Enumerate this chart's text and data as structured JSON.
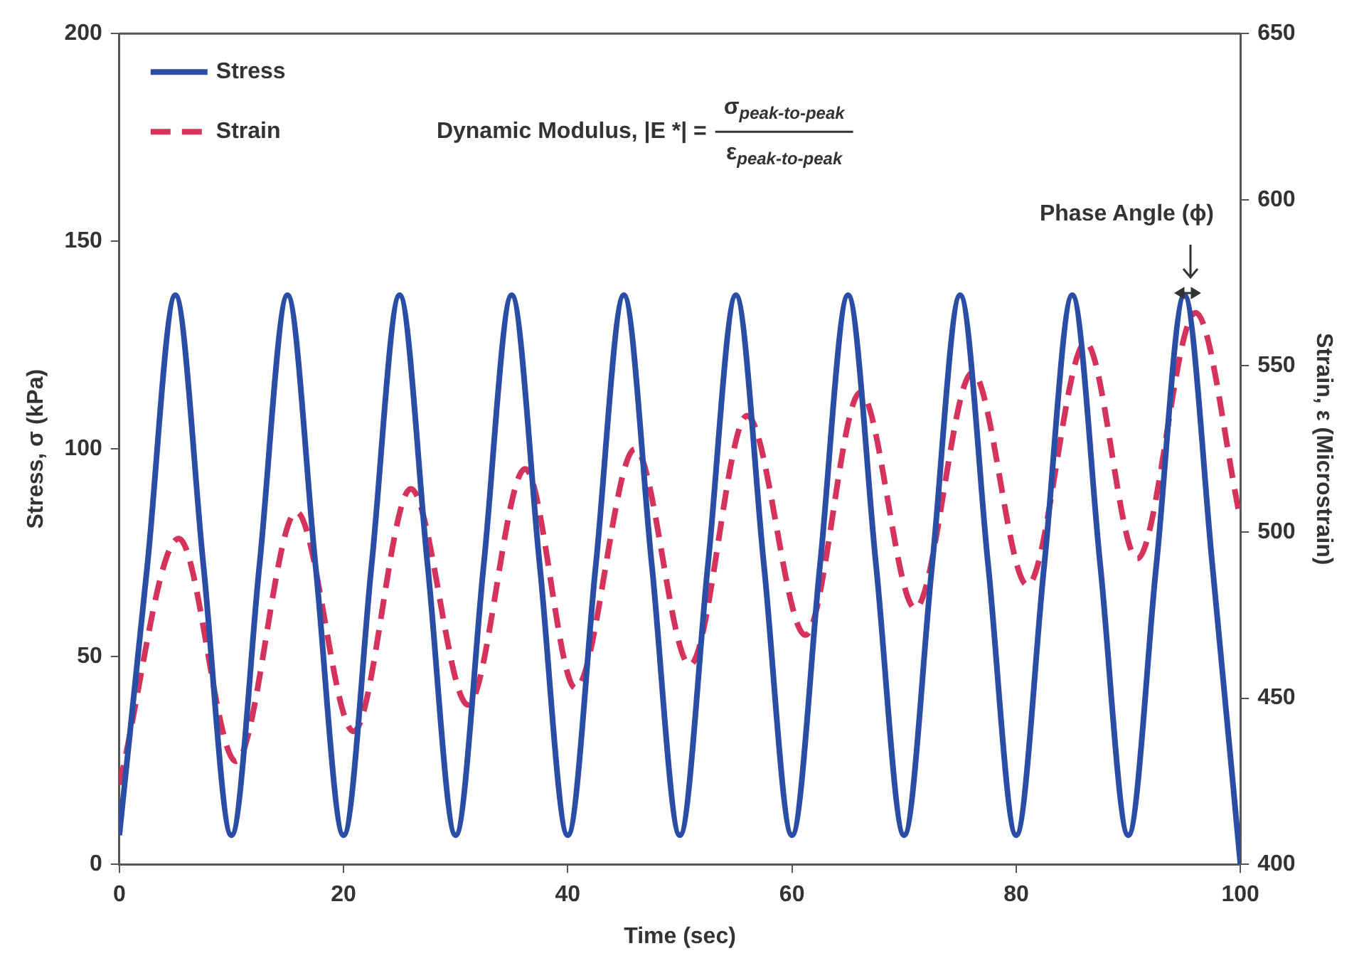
{
  "chart_data": {
    "type": "line",
    "xlabel": "Time (sec)",
    "ylabel": "Stress, σ (kPa)",
    "y2label": "Strain, ε (Microstrain)",
    "xlim": [
      0,
      100
    ],
    "xticks": [
      0,
      20,
      40,
      60,
      80,
      100
    ],
    "ylim": [
      0,
      200
    ],
    "yticks": [
      0,
      50,
      100,
      150,
      200
    ],
    "y2lim": [
      400,
      650
    ],
    "y2ticks": [
      400,
      450,
      500,
      550,
      600,
      650
    ],
    "grid": false,
    "legend": "top left",
    "marker": "none",
    "annotations": [
      "Dynamic Modulus, |E *| =",
      "σ$_{peak-to-peak}$",
      "ε$_{peak-to-peak}$",
      "Phase Angle (ϕ)"
    ],
    "series": [
      {
        "name": "Stress",
        "color": "#2a4ea6",
        "line_style": "solid",
        "x": [
          0,
          2.5,
          5,
          7.5,
          10,
          12.5,
          15,
          17.5,
          20,
          22.5,
          25,
          27.5,
          30,
          32.5,
          35,
          37.5,
          40,
          42.5,
          45,
          47.5,
          50,
          52.5,
          55,
          57.5,
          60,
          62.5,
          65,
          67.5,
          70,
          72.5,
          75,
          77.5,
          80,
          82.5,
          85,
          87.5,
          90,
          92.5,
          95,
          97.5,
          100
        ],
        "values": [
          7,
          72,
          137,
          72,
          7,
          72,
          137,
          72,
          7,
          72,
          137,
          72,
          7,
          72,
          137,
          72,
          7,
          72,
          137,
          72,
          7,
          72,
          137,
          72,
          7,
          72,
          137,
          72,
          7,
          72,
          137,
          72,
          7,
          72,
          137,
          72,
          7,
          72,
          137,
          72,
          0
        ]
      },
      {
        "name": "Strain",
        "color": "#d6335c",
        "line_style": "dashed",
        "axis": "y2",
        "x": [
          0,
          5.3,
          10.4,
          15.8,
          20.9,
          26,
          31.1,
          36.2,
          40.7,
          46,
          50.9,
          56,
          61.2,
          66.1,
          71,
          76.1,
          81,
          86.2,
          90.8,
          96,
          100
        ],
        "values": [
          424,
          498,
          431,
          506,
          440,
          513,
          448,
          519,
          453,
          525,
          460,
          535,
          469,
          542,
          477,
          548,
          484,
          557,
          492,
          566,
          504
        ]
      }
    ]
  }
}
